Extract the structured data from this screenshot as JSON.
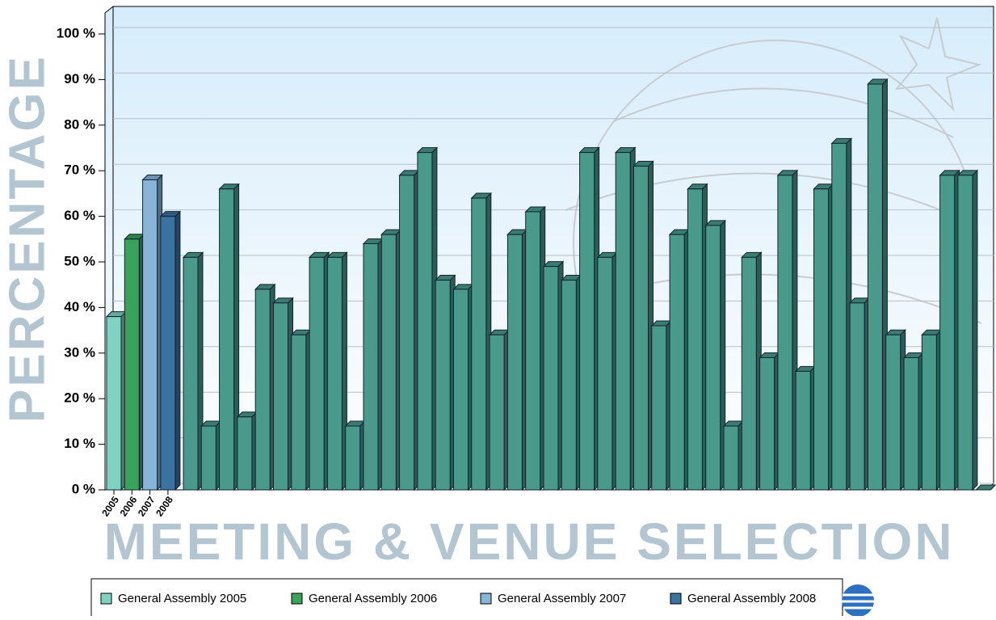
{
  "chart_data": {
    "type": "bar",
    "y_label": "PERCENTAGE",
    "x_label": "MEETING & VENUE SELECTION",
    "categories": [
      "2005",
      "2006",
      "2007",
      "2008",
      null,
      null,
      null,
      null,
      null,
      null,
      null,
      null,
      null,
      null,
      null,
      null,
      null,
      null,
      null,
      null,
      null,
      null,
      null,
      null,
      null,
      null,
      null,
      null,
      null,
      null,
      null,
      null,
      null,
      null,
      null,
      null,
      null,
      null,
      null,
      null,
      null,
      null,
      null,
      null,
      null,
      null,
      null,
      null,
      null
    ],
    "values": [
      38,
      55,
      68,
      60,
      51,
      14,
      66,
      16,
      44,
      41,
      34,
      51,
      51,
      14,
      54,
      56,
      69,
      74,
      46,
      44,
      64,
      34,
      56,
      61,
      49,
      46,
      74,
      51,
      74,
      71,
      36,
      56,
      66,
      58,
      14,
      51,
      29,
      69,
      26,
      66,
      76,
      41,
      89,
      34,
      29,
      34,
      69,
      69,
      0
    ],
    "color": "#4a9a8c",
    "legend": [
      {
        "name": "General Assembly 2005",
        "color": "#7fd3c0"
      },
      {
        "name": "General Assembly 2006",
        "color": "#3aa35a"
      },
      {
        "name": "General Assembly 2007",
        "color": "#88b4d8"
      },
      {
        "name": "General Assembly 2008",
        "color": "#3a72a0"
      }
    ],
    "ylim": [
      0,
      100
    ],
    "yticks": [
      {
        "value": 0,
        "label": "0 %"
      },
      {
        "value": 10,
        "label": "10 %"
      },
      {
        "value": 20,
        "label": "20 %"
      },
      {
        "value": 30,
        "label": "30 %"
      },
      {
        "value": 40,
        "label": "40 %"
      },
      {
        "value": 50,
        "label": "50 %"
      },
      {
        "value": 60,
        "label": "60 %"
      },
      {
        "value": 70,
        "label": "70 %"
      },
      {
        "value": 80,
        "label": "80 %"
      },
      {
        "value": 90,
        "label": "90 %"
      },
      {
        "value": 100,
        "label": "100 %"
      }
    ],
    "grid": true
  }
}
